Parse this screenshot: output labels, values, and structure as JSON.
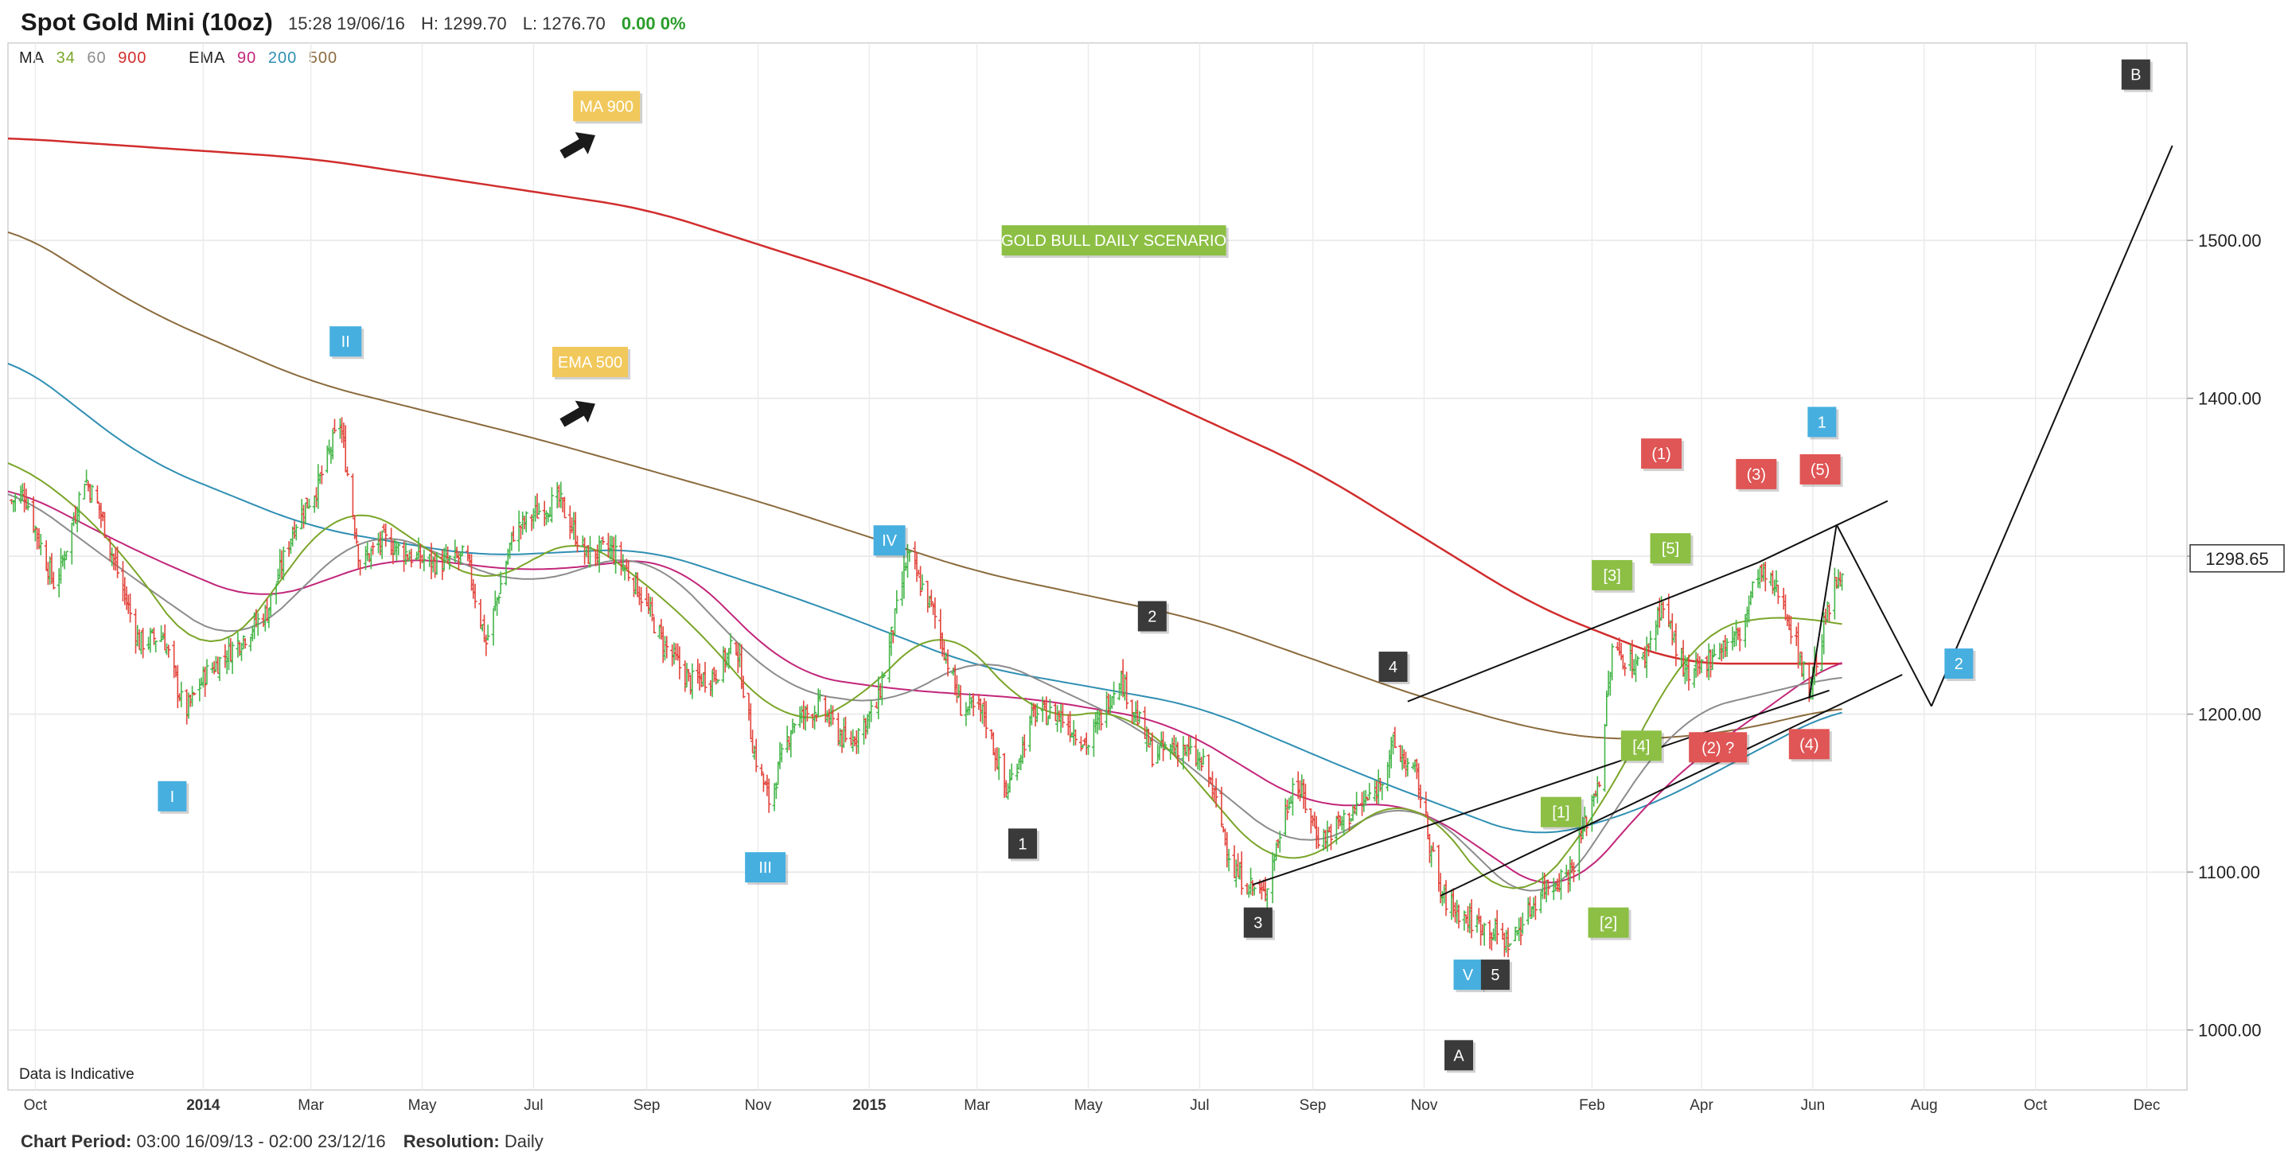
{
  "header": {
    "title": "Spot Gold Mini (10oz)",
    "timestamp": "15:28 19/06/16",
    "high": "H: 1299.70",
    "low": "L: 1276.70",
    "change": "0.00 0%"
  },
  "legend": {
    "ma_label": "MA",
    "ma_periods": [
      "34",
      "60",
      "900"
    ],
    "ema_label": "EMA",
    "ema_periods": [
      "90",
      "200",
      "500"
    ]
  },
  "data_note": "Data is Indicative",
  "footer": {
    "period_label": "Chart Period:",
    "period_value": "03:00 16/09/13 - 02:00 23/12/16",
    "resolution_label": "Resolution:",
    "resolution_value": "Daily"
  },
  "colors": {
    "up": "#45b649",
    "down": "#e2453c",
    "ma34": "#7aa529",
    "ma60": "#8c8c8c",
    "ma900": "#d12d2d",
    "ema90": "#c2267a",
    "ema200": "#2f8fb3",
    "ema500": "#8b6b3d",
    "label_blue": "#46afe0",
    "label_green": "#8cbf44",
    "label_red": "#e05555",
    "label_dark": "#3a3a3a",
    "label_yellow": "#f1c85b"
  },
  "chart_data": {
    "type": "candlestick",
    "ylim": [
      962,
      1625
    ],
    "y_ticks": [
      "1000.00",
      "1100.00",
      "1200.00",
      "1300.00",
      "1400.00",
      "1500.00"
    ],
    "y_tick_values": [
      1000,
      1100,
      1200,
      1300,
      1400,
      1500
    ],
    "x_ticks": [
      "Oct",
      "2014",
      "Mar",
      "May",
      "Jul",
      "Sep",
      "Nov",
      "2015",
      "Mar",
      "May",
      "Jul",
      "Sep",
      "Nov",
      "Feb",
      "Apr",
      "Jun",
      "Aug",
      "Oct",
      "Dec"
    ],
    "x_tick_dates": [
      "2013-10-01",
      "2014-01-01",
      "2014-03-01",
      "2014-05-01",
      "2014-07-01",
      "2014-09-01",
      "2014-11-01",
      "2015-01-01",
      "2015-03-01",
      "2015-05-01",
      "2015-07-01",
      "2015-09-01",
      "2015-11-01",
      "2016-02-01",
      "2016-04-01",
      "2016-06-01",
      "2016-08-01",
      "2016-10-01",
      "2016-12-01"
    ],
    "current_price": "1298.65",
    "price_path": [
      [
        "2013-09-18",
        1335
      ],
      [
        "2013-09-25",
        1340
      ],
      [
        "2013-10-03",
        1310
      ],
      [
        "2013-10-12",
        1280
      ],
      [
        "2013-10-20",
        1315
      ],
      [
        "2013-10-28",
        1350
      ],
      [
        "2013-11-05",
        1330
      ],
      [
        "2013-11-15",
        1290
      ],
      [
        "2013-11-27",
        1245
      ],
      [
        "2013-12-10",
        1250
      ],
      [
        "2013-12-22",
        1200
      ],
      [
        "2014-01-02",
        1225
      ],
      [
        "2014-01-20",
        1245
      ],
      [
        "2014-02-05",
        1265
      ],
      [
        "2014-02-20",
        1320
      ],
      [
        "2014-03-05",
        1345
      ],
      [
        "2014-03-17",
        1385
      ],
      [
        "2014-03-28",
        1295
      ],
      [
        "2014-04-10",
        1310
      ],
      [
        "2014-04-25",
        1300
      ],
      [
        "2014-05-10",
        1295
      ],
      [
        "2014-05-25",
        1300
      ],
      [
        "2014-06-05",
        1245
      ],
      [
        "2014-06-20",
        1315
      ],
      [
        "2014-07-05",
        1330
      ],
      [
        "2014-07-15",
        1335
      ],
      [
        "2014-07-30",
        1300
      ],
      [
        "2014-08-12",
        1305
      ],
      [
        "2014-08-25",
        1285
      ],
      [
        "2014-09-10",
        1245
      ],
      [
        "2014-09-25",
        1220
      ],
      [
        "2014-10-08",
        1225
      ],
      [
        "2014-10-20",
        1245
      ],
      [
        "2014-10-30",
        1175
      ],
      [
        "2014-11-07",
        1145
      ],
      [
        "2014-11-20",
        1195
      ],
      [
        "2014-12-05",
        1205
      ],
      [
        "2014-12-20",
        1180
      ],
      [
        "2015-01-05",
        1205
      ],
      [
        "2015-01-15",
        1260
      ],
      [
        "2015-01-22",
        1300
      ],
      [
        "2015-02-05",
        1265
      ],
      [
        "2015-02-20",
        1205
      ],
      [
        "2015-03-05",
        1200
      ],
      [
        "2015-03-17",
        1150
      ],
      [
        "2015-04-01",
        1200
      ],
      [
        "2015-04-15",
        1200
      ],
      [
        "2015-05-01",
        1180
      ],
      [
        "2015-05-18",
        1225
      ],
      [
        "2015-06-05",
        1175
      ],
      [
        "2015-06-20",
        1180
      ],
      [
        "2015-07-05",
        1165
      ],
      [
        "2015-07-20",
        1100
      ],
      [
        "2015-08-05",
        1085
      ],
      [
        "2015-08-22",
        1160
      ],
      [
        "2015-09-05",
        1120
      ],
      [
        "2015-09-20",
        1135
      ],
      [
        "2015-10-05",
        1150
      ],
      [
        "2015-10-15",
        1180
      ],
      [
        "2015-10-28",
        1160
      ],
      [
        "2015-11-10",
        1085
      ],
      [
        "2015-11-25",
        1070
      ],
      [
        "2015-12-05",
        1065
      ],
      [
        "2015-12-18",
        1055
      ],
      [
        "2016-01-05",
        1090
      ],
      [
        "2016-01-20",
        1100
      ],
      [
        "2016-02-05",
        1160
      ],
      [
        "2016-02-12",
        1240
      ],
      [
        "2016-02-28",
        1230
      ],
      [
        "2016-03-10",
        1270
      ],
      [
        "2016-03-25",
        1220
      ],
      [
        "2016-04-08",
        1240
      ],
      [
        "2016-04-22",
        1250
      ],
      [
        "2016-05-02",
        1290
      ],
      [
        "2016-05-15",
        1275
      ],
      [
        "2016-05-30",
        1215
      ],
      [
        "2016-06-08",
        1260
      ],
      [
        "2016-06-17",
        1295
      ]
    ],
    "ma_series": [
      {
        "name": "900",
        "path": [
          [
            "2013-09-16",
            1565
          ],
          [
            "2014-03-01",
            1552
          ],
          [
            "2014-09-01",
            1520
          ],
          [
            "2015-01-01",
            1475
          ],
          [
            "2015-05-01",
            1420
          ],
          [
            "2015-09-01",
            1355
          ],
          [
            "2016-01-01",
            1268
          ],
          [
            "2016-03-20",
            1232
          ],
          [
            "2016-06-17",
            1232
          ]
        ]
      },
      {
        "name": "500",
        "path": [
          [
            "2013-09-16",
            1510
          ],
          [
            "2013-12-01",
            1455
          ],
          [
            "2014-03-01",
            1410
          ],
          [
            "2014-07-01",
            1375
          ],
          [
            "2014-11-01",
            1335
          ],
          [
            "2015-03-01",
            1290
          ],
          [
            "2015-07-01",
            1260
          ],
          [
            "2015-11-01",
            1210
          ],
          [
            "2016-01-01",
            1190
          ],
          [
            "2016-02-15",
            1183
          ],
          [
            "2016-04-15",
            1188
          ],
          [
            "2016-06-17",
            1205
          ]
        ]
      },
      {
        "name": "200",
        "path": [
          [
            "2013-09-16",
            1428
          ],
          [
            "2013-12-01",
            1360
          ],
          [
            "2014-03-01",
            1318
          ],
          [
            "2014-06-01",
            1300
          ],
          [
            "2014-09-01",
            1305
          ],
          [
            "2014-12-01",
            1270
          ],
          [
            "2015-03-01",
            1230
          ],
          [
            "2015-07-01",
            1205
          ],
          [
            "2015-10-01",
            1160
          ],
          [
            "2016-01-01",
            1120
          ],
          [
            "2016-03-01",
            1140
          ],
          [
            "2016-06-17",
            1205
          ]
        ]
      },
      {
        "name": "90",
        "path": [
          [
            "2013-09-16",
            1345
          ],
          [
            "2013-12-01",
            1300
          ],
          [
            "2014-02-01",
            1270
          ],
          [
            "2014-04-15",
            1300
          ],
          [
            "2014-07-01",
            1290
          ],
          [
            "2014-09-15",
            1300
          ],
          [
            "2014-11-20",
            1225
          ],
          [
            "2015-01-20",
            1215
          ],
          [
            "2015-04-01",
            1210
          ],
          [
            "2015-06-15",
            1195
          ],
          [
            "2015-09-01",
            1140
          ],
          [
            "2015-10-25",
            1145
          ],
          [
            "2016-01-15",
            1080
          ],
          [
            "2016-03-15",
            1160
          ],
          [
            "2016-06-17",
            1238
          ]
        ]
      },
      {
        "name": "60",
        "path": [
          [
            "2013-09-16",
            1345
          ],
          [
            "2013-11-25",
            1285
          ],
          [
            "2014-01-20",
            1240
          ],
          [
            "2014-04-01",
            1320
          ],
          [
            "2014-06-25",
            1280
          ],
          [
            "2014-09-01",
            1305
          ],
          [
            "2014-11-15",
            1215
          ],
          [
            "2015-01-15",
            1205
          ],
          [
            "2015-03-01",
            1240
          ],
          [
            "2015-06-01",
            1190
          ],
          [
            "2015-08-25",
            1110
          ],
          [
            "2015-10-25",
            1150
          ],
          [
            "2016-01-05",
            1070
          ],
          [
            "2016-03-20",
            1200
          ],
          [
            "2016-06-17",
            1225
          ]
        ]
      },
      {
        "name": "34",
        "path": [
          [
            "2013-09-16",
            1365
          ],
          [
            "2013-11-10",
            1315
          ],
          [
            "2014-01-05",
            1225
          ],
          [
            "2014-03-20",
            1340
          ],
          [
            "2014-06-10",
            1275
          ],
          [
            "2014-07-20",
            1320
          ],
          [
            "2014-09-25",
            1260
          ],
          [
            "2014-11-15",
            1190
          ],
          [
            "2014-12-25",
            1205
          ],
          [
            "2015-02-10",
            1265
          ],
          [
            "2015-04-01",
            1195
          ],
          [
            "2015-05-25",
            1205
          ],
          [
            "2015-08-15",
            1095
          ],
          [
            "2015-10-25",
            1155
          ],
          [
            "2015-12-20",
            1070
          ],
          [
            "2016-02-10",
            1145
          ],
          [
            "2016-03-25",
            1250
          ],
          [
            "2016-05-15",
            1265
          ],
          [
            "2016-06-17",
            1255
          ]
        ]
      }
    ],
    "trendlines": [
      [
        [
          "2015-10-23",
          1208
        ],
        [
          "2016-05-02",
          1296
        ]
      ],
      [
        [
          "2015-07-30",
          1092
        ],
        [
          "2016-06-10",
          1215
        ]
      ],
      [
        [
          "2015-11-10",
          1085
        ],
        [
          "2016-07-20",
          1225
        ]
      ],
      [
        [
          "2016-05-02",
          1296
        ],
        [
          "2016-07-12",
          1335
        ]
      ],
      [
        [
          "2016-05-30",
          1210
        ],
        [
          "2016-06-14",
          1320
        ]
      ],
      [
        [
          "2016-06-14",
          1320
        ],
        [
          "2016-08-05",
          1205
        ]
      ],
      [
        [
          "2016-08-05",
          1205
        ],
        [
          "2016-12-15",
          1560
        ]
      ]
    ],
    "labels": [
      {
        "text": "I",
        "style": "label_blue",
        "date": "2013-12-15",
        "y": 1148
      },
      {
        "text": "II",
        "style": "label_blue",
        "date": "2014-03-20",
        "y": 1436
      },
      {
        "text": "III",
        "style": "label_blue",
        "date": "2014-11-05",
        "y": 1103
      },
      {
        "text": "IV",
        "style": "label_blue",
        "date": "2015-01-12",
        "y": 1310
      },
      {
        "text": "V",
        "style": "label_blue",
        "date": "2015-11-25",
        "y": 1035
      },
      {
        "text": "1",
        "style": "label_blue",
        "date": "2016-06-06",
        "y": 1385
      },
      {
        "text": "2",
        "style": "label_blue",
        "date": "2016-08-20",
        "y": 1232
      },
      {
        "text": "1",
        "style": "label_dark",
        "date": "2015-03-26",
        "y": 1118
      },
      {
        "text": "2",
        "style": "label_dark",
        "date": "2015-06-05",
        "y": 1262
      },
      {
        "text": "3",
        "style": "label_dark",
        "date": "2015-08-02",
        "y": 1068
      },
      {
        "text": "4",
        "style": "label_dark",
        "date": "2015-10-15",
        "y": 1230
      },
      {
        "text": "5",
        "style": "label_dark",
        "date": "2015-12-10",
        "y": 1035
      },
      {
        "text": "A",
        "style": "label_dark",
        "date": "2015-11-20",
        "y": 984
      },
      {
        "text": "B",
        "style": "label_dark",
        "date": "2016-11-25",
        "y": 1605
      },
      {
        "text": "[1]",
        "style": "label_green",
        "date": "2016-01-15",
        "y": 1138
      },
      {
        "text": "[2]",
        "style": "label_green",
        "date": "2016-02-10",
        "y": 1068
      },
      {
        "text": "[3]",
        "style": "label_green",
        "date": "2016-02-12",
        "y": 1288
      },
      {
        "text": "[4]",
        "style": "label_green",
        "date": "2016-02-28",
        "y": 1180
      },
      {
        "text": "[5]",
        "style": "label_green",
        "date": "2016-03-15",
        "y": 1305
      },
      {
        "text": "(1)",
        "style": "label_red",
        "date": "2016-03-10",
        "y": 1365
      },
      {
        "text": "(2) ?",
        "style": "label_red",
        "date": "2016-04-10",
        "y": 1179
      },
      {
        "text": "(3)",
        "style": "label_red",
        "date": "2016-05-01",
        "y": 1352
      },
      {
        "text": "(4)",
        "style": "label_red",
        "date": "2016-05-30",
        "y": 1181
      },
      {
        "text": "(5)",
        "style": "label_red",
        "date": "2016-06-05",
        "y": 1355
      },
      {
        "text": "MA 900",
        "style": "label_yellow",
        "date": "2014-08-10",
        "y": 1585
      },
      {
        "text": "EMA 500",
        "style": "label_yellow",
        "date": "2014-08-01",
        "y": 1423
      },
      {
        "text": "GOLD BULL DAILY SCENARIO",
        "style": "label_green",
        "date": "2015-05-15",
        "y": 1500
      }
    ],
    "arrows": [
      {
        "name": "ma900-arrow",
        "date": "2014-07-25",
        "y": 1560
      },
      {
        "name": "ema500-arrow",
        "date": "2014-07-25",
        "y": 1390
      }
    ]
  }
}
